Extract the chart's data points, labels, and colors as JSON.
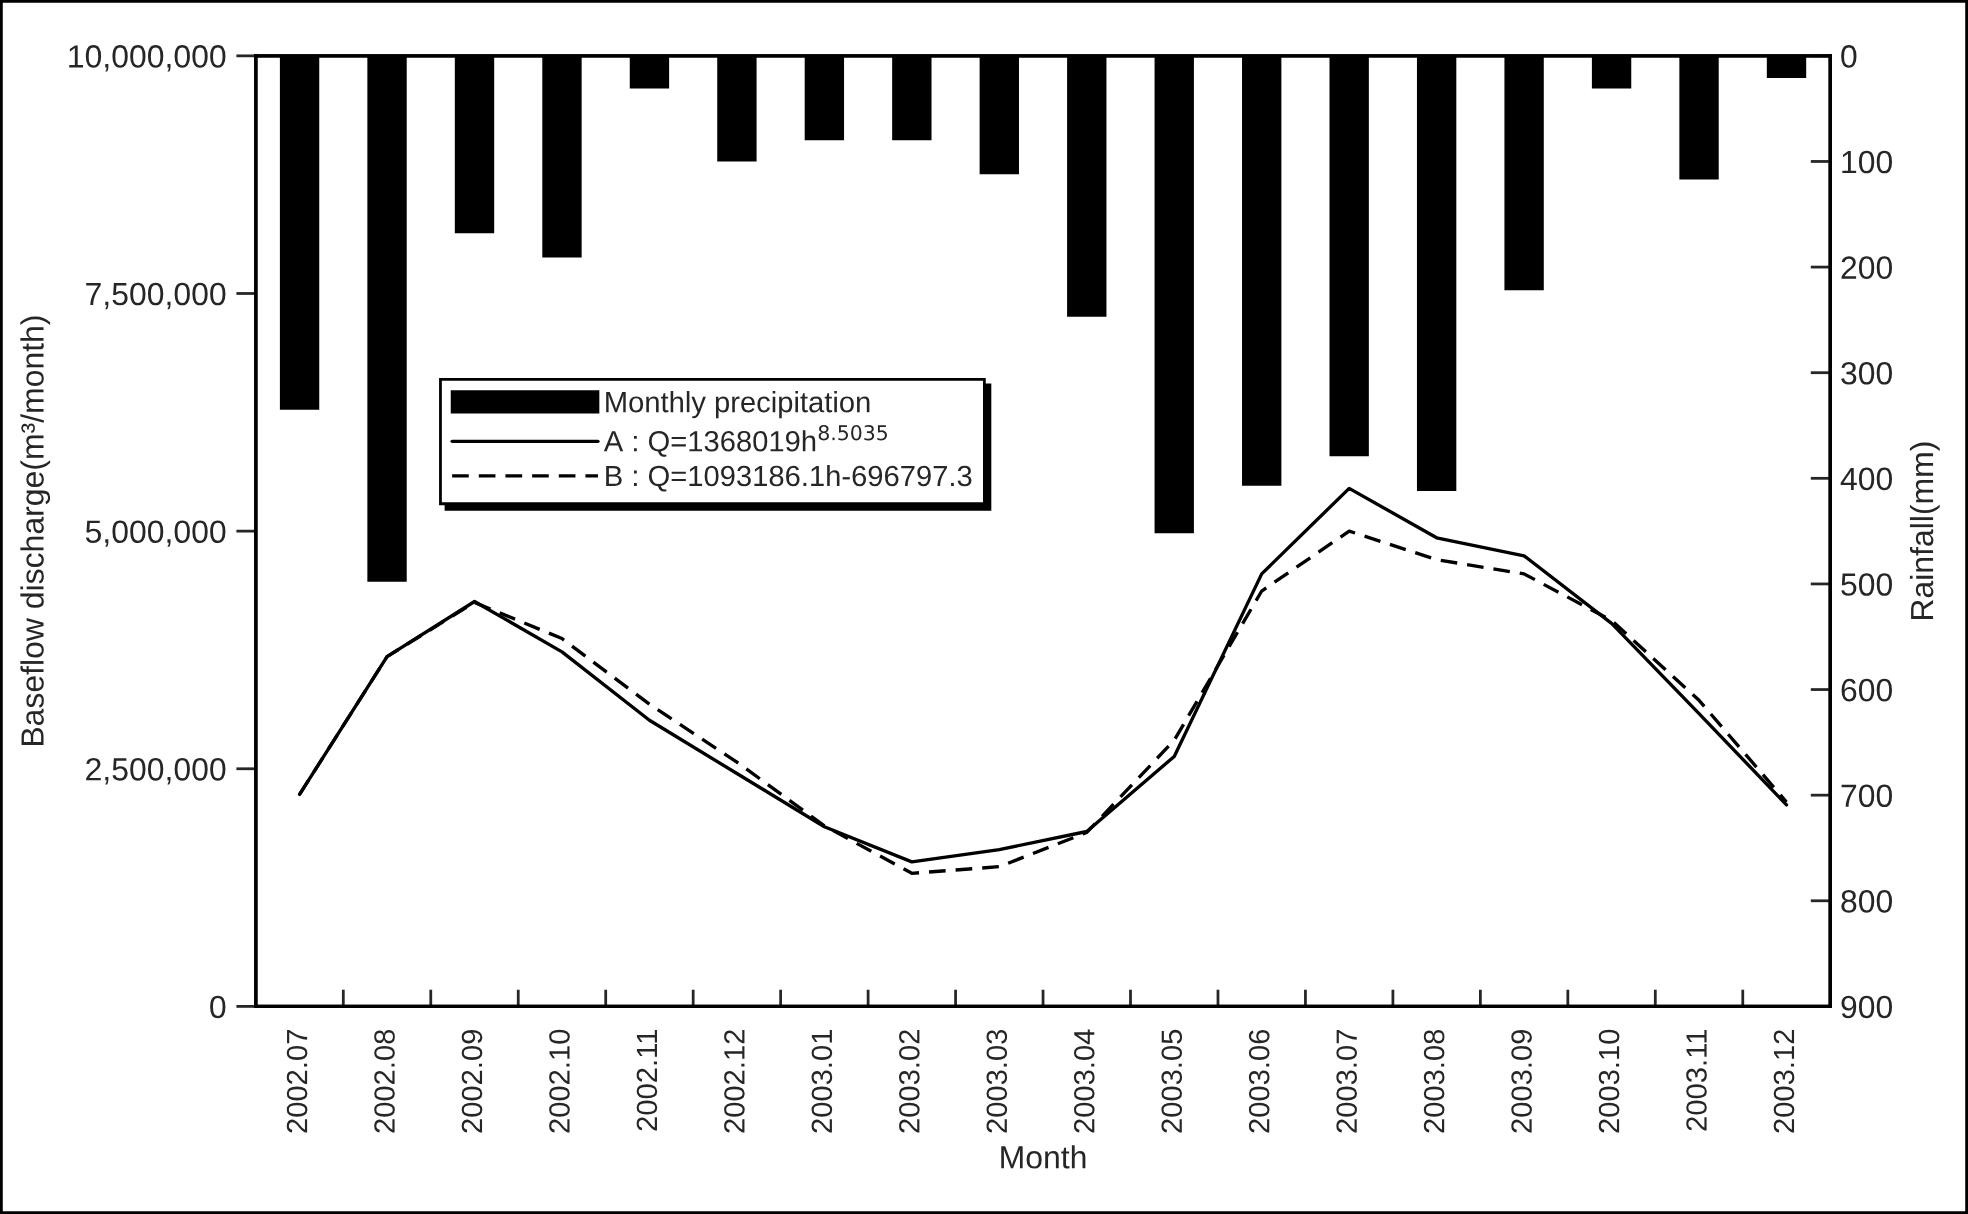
{
  "chart_data": {
    "type": "line",
    "xlabel": "Month",
    "ylabel": "Baseflow discharge(m³/month)",
    "y2label": "Rainfall(mm)",
    "categories": [
      "2002.07",
      "2002.08",
      "2002.09",
      "2002.10",
      "2002.11",
      "2002.12",
      "2003.01",
      "2003.02",
      "2003.03",
      "2003.04",
      "2003.05",
      "2003.06",
      "2003.07",
      "2003.08",
      "2003.09",
      "2003.10",
      "2003.11",
      "2003.12"
    ],
    "series": [
      {
        "name": "Monthly precipitation",
        "type": "bar",
        "axis": "y2",
        "color": "#000000",
        "values": [
          335,
          498,
          168,
          191,
          31,
          100,
          80,
          80,
          112,
          247,
          452,
          407,
          379,
          412,
          222,
          31,
          117,
          21
        ]
      },
      {
        "name": "A : Q=1368019h$^{8.5035}$",
        "color": "#000000",
        "line_style": "solid",
        "values": [
          2230000,
          3680000,
          4260000,
          3730000,
          3010000,
          2450000,
          1890000,
          1520000,
          1650000,
          1840000,
          2630000,
          4550000,
          5450000,
          4930000,
          4740000,
          4030000,
          3080000,
          2120000
        ]
      },
      {
        "name": "B : Q=1093186.1h-696797.3",
        "color": "#000000",
        "line_style": "dashed",
        "values": [
          2230000,
          3680000,
          4250000,
          3870000,
          3180000,
          2570000,
          1900000,
          1400000,
          1470000,
          1830000,
          2800000,
          4370000,
          5000000,
          4700000,
          4550000,
          4060000,
          3220000,
          2150000
        ]
      }
    ],
    "ylim": [
      0,
      10000000
    ],
    "yticks": [
      0,
      {
        "value": 2500000,
        "label": "2,500,000"
      },
      {
        "value": 5000000,
        "label": "5,000,000"
      },
      {
        "value": 7500000,
        "label": "7,500,000"
      },
      {
        "value": 10000000,
        "label": "10,000,000"
      }
    ],
    "y2lim": [
      900,
      0
    ],
    "y2ticks": [
      0,
      100,
      200,
      300,
      400,
      500,
      600,
      700,
      800,
      900
    ],
    "legend": "upper left"
  }
}
